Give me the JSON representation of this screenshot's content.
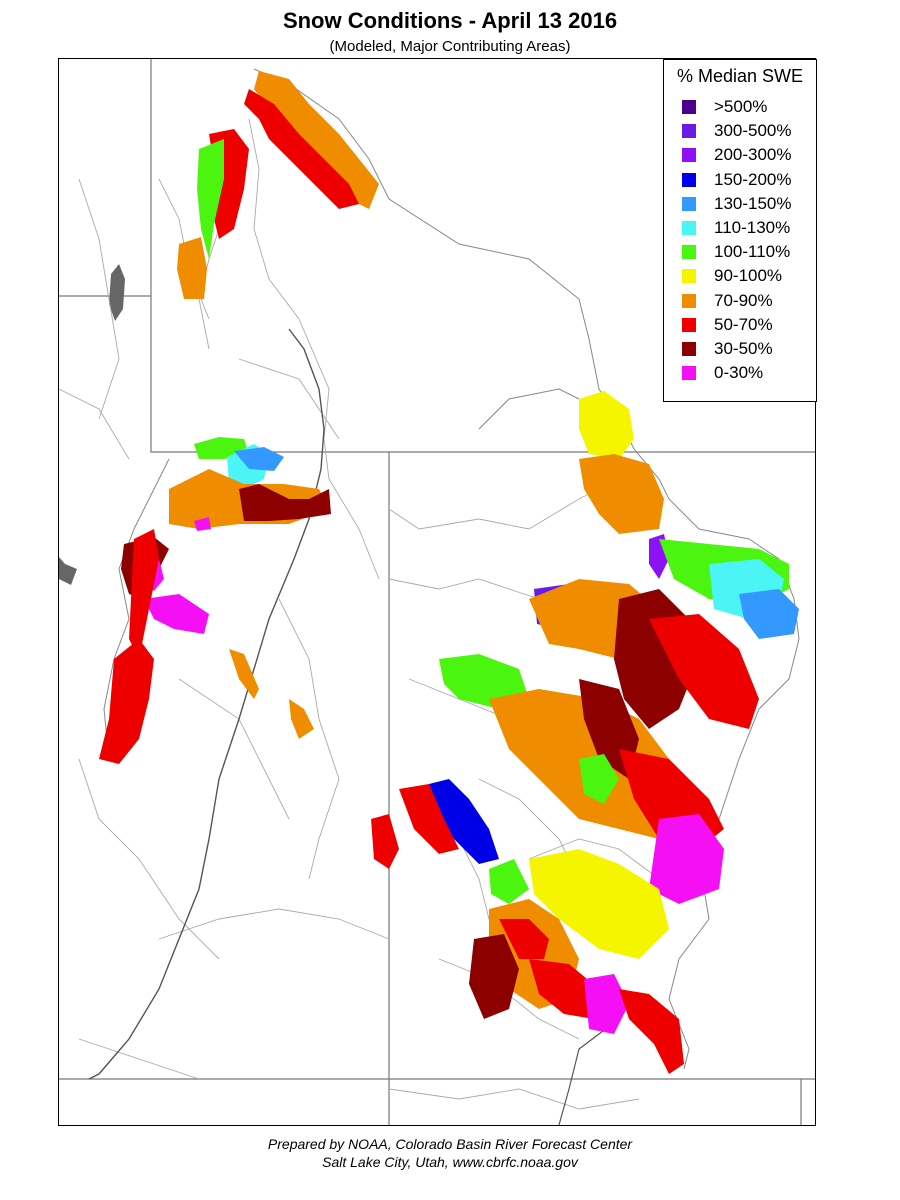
{
  "title": "Snow Conditions - April 13 2016",
  "subtitle": "(Modeled, Major Contributing Areas)",
  "legend": {
    "title": "% Median SWE",
    "items": [
      {
        "label": ">500%",
        "color": "#4b0091"
      },
      {
        "label": "300-500%",
        "color": "#6a1ae6"
      },
      {
        "label": "200-300%",
        "color": "#8c12f5"
      },
      {
        "label": "150-200%",
        "color": "#0000e6"
      },
      {
        "label": "130-150%",
        "color": "#3399ff"
      },
      {
        "label": "110-130%",
        "color": "#4cf5f5"
      },
      {
        "label": "100-110%",
        "color": "#4cf50f"
      },
      {
        "label": "90-100%",
        "color": "#f5f500"
      },
      {
        "label": "70-90%",
        "color": "#f08c00"
      },
      {
        "label": "50-70%",
        "color": "#ee0000"
      },
      {
        "label": "30-50%",
        "color": "#8c0000"
      },
      {
        "label": "0-30%",
        "color": "#f50ff5"
      }
    ]
  },
  "footer": {
    "line1": "Prepared by NOAA, Colorado Basin River Forecast Center",
    "line2": "Salt Lake City, Utah, www.cbrfc.noaa.gov"
  }
}
